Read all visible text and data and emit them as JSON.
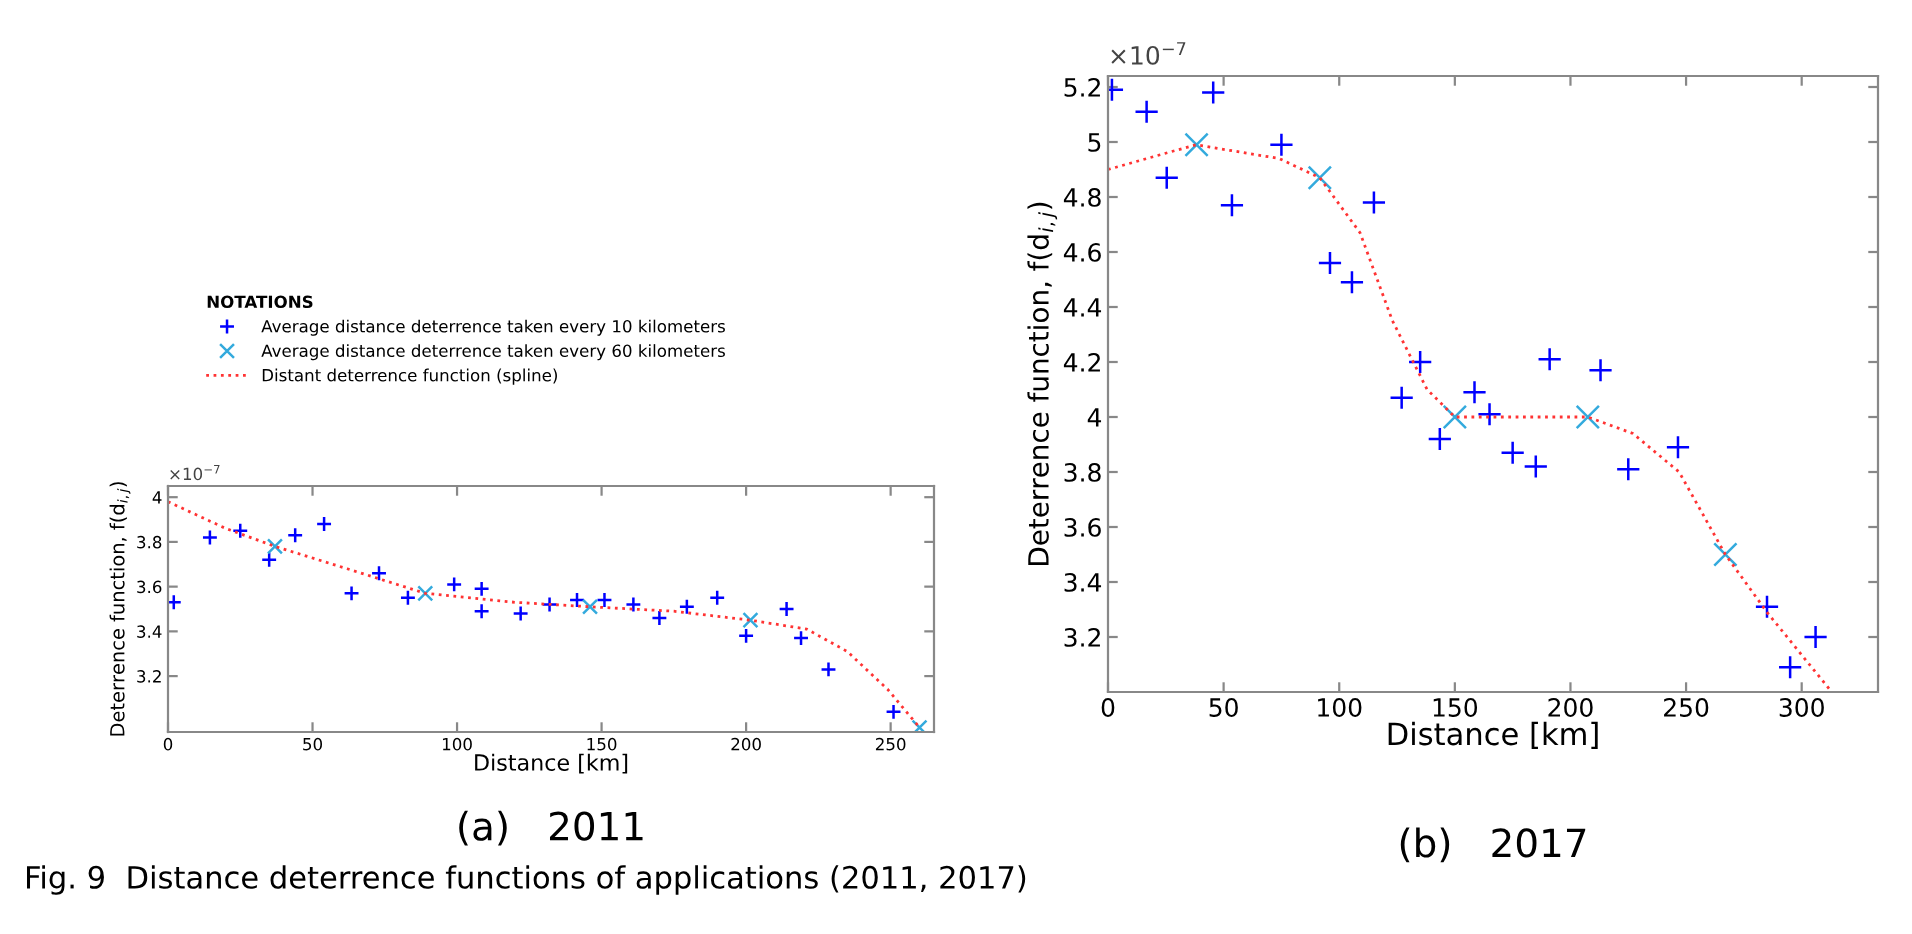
{
  "chart_data": [
    {
      "type": "scatter",
      "title": "(a)   2011",
      "xlabel": "Distance [km]",
      "ylabel": "Deterrence function, f(d$_{i,j}$)",
      "legend_title": "NOTATIONS",
      "legend": "top",
      "grid": false,
      "annotations": [
        "×10$^{−7}$"
      ],
      "xlim": [
        0,
        265
      ],
      "xticks": [
        0,
        50,
        100,
        150,
        200,
        250
      ],
      "ylim": [
        2.95,
        4.05
      ],
      "yticks": [
        3.2,
        3.4,
        3.6,
        3.8,
        4
      ],
      "series": [
        {
          "name": "Average distance deterrence taken every 10 kilometers",
          "marker": "plus",
          "color": "#0000ff",
          "x": [
            2,
            14.5,
            25,
            35,
            44,
            54,
            63.5,
            73,
            83,
            99,
            108.5,
            108.5,
            122,
            132,
            141.5,
            151,
            161,
            170,
            179.5,
            190,
            200,
            214,
            219,
            228.5,
            251
          ],
          "values": [
            3.53,
            3.82,
            3.85,
            3.72,
            3.83,
            3.88,
            3.57,
            3.66,
            3.55,
            3.61,
            3.59,
            3.49,
            3.48,
            3.52,
            3.54,
            3.54,
            3.52,
            3.46,
            3.51,
            3.55,
            3.38,
            3.5,
            3.37,
            3.23,
            3.04
          ]
        },
        {
          "name": "Average distance deterrence taken every 60 kilometers",
          "marker": "cross",
          "color": "#33aadd",
          "x": [
            37,
            89,
            146,
            201.5,
            260
          ],
          "values": [
            3.78,
            3.57,
            3.51,
            3.45,
            2.97
          ]
        },
        {
          "name": "Distant deterrence function (spline)",
          "type": "line",
          "line_style": "dotted",
          "color": "#ff3333",
          "x": [
            0,
            20,
            37,
            62,
            89,
            120,
            146,
            175,
            201.5,
            221,
            235,
            249,
            260
          ],
          "values": [
            3.98,
            3.86,
            3.78,
            3.68,
            3.57,
            3.53,
            3.51,
            3.49,
            3.45,
            3.41,
            3.31,
            3.14,
            2.97
          ]
        }
      ]
    },
    {
      "type": "scatter",
      "title": "(b)   2017",
      "xlabel": "Distance [km]",
      "ylabel": "Deterrence function, f(d$_{i,j}$)",
      "grid": false,
      "annotations": [
        "×10$^{−7}$",
        "Fig. 9  Distance deterrence functions of applications (2011, 2017)"
      ],
      "xlim": [
        0,
        333
      ],
      "xticks": [
        0,
        50,
        100,
        150,
        200,
        250,
        300
      ],
      "ylim": [
        3.0,
        5.24
      ],
      "yticks": [
        3.2,
        3.4,
        3.6,
        3.8,
        4,
        4.2,
        4.4,
        4.6,
        4.8,
        5,
        5.2
      ],
      "series": [
        {
          "marker": "plus",
          "color": "#0000ff",
          "x": [
            1.7,
            16.7,
            25.4,
            45.5,
            53.6,
            75,
            96,
            105.5,
            115,
            127,
            135,
            143.5,
            158.5,
            165,
            175,
            185,
            191,
            213,
            225,
            246.5,
            285,
            295,
            306
          ],
          "values": [
            5.19,
            5.11,
            4.87,
            5.18,
            4.77,
            4.99,
            4.56,
            4.49,
            4.78,
            4.07,
            4.2,
            3.92,
            4.09,
            4.01,
            3.87,
            3.82,
            4.21,
            4.17,
            3.81,
            3.89,
            3.31,
            3.09,
            3.2
          ]
        },
        {
          "marker": "cross",
          "color": "#33aadd",
          "x": [
            38.3,
            91.6,
            150,
            207.5,
            267
          ],
          "values": [
            4.99,
            4.87,
            4.0,
            4.0,
            3.5
          ]
        },
        {
          "type": "line",
          "line_style": "dotted",
          "color": "#ff3333",
          "x": [
            0,
            38,
            74,
            91.6,
            109,
            123,
            138,
            150,
            184,
            207.5,
            227,
            247,
            267,
            285,
            313
          ],
          "values": [
            4.9,
            4.99,
            4.94,
            4.87,
            4.67,
            4.35,
            4.1,
            4.0,
            4.0,
            4.0,
            3.94,
            3.8,
            3.5,
            3.29,
            3.0
          ]
        }
      ]
    }
  ]
}
